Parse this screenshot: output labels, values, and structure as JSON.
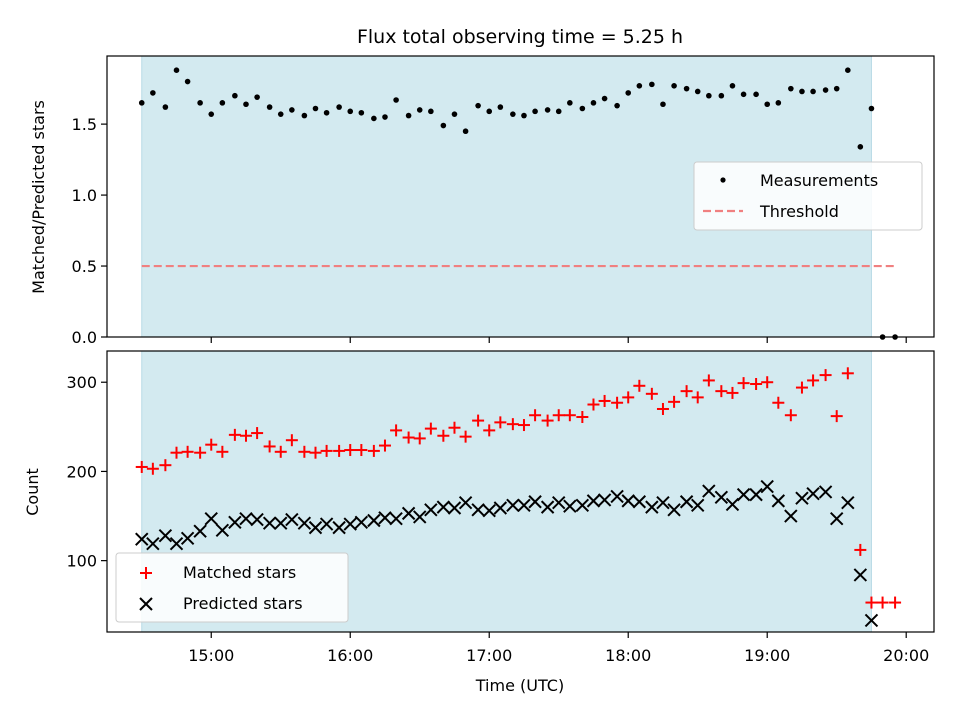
{
  "chart_data": {
    "type": "scatter",
    "title": "Flux total observing time = 5.25 h",
    "xlabel": "Time (UTC)",
    "x_ticks": [
      "15:00",
      "16:00",
      "17:00",
      "18:00",
      "19:00",
      "20:00"
    ],
    "x_unit": "hours UTC",
    "xlim": [
      14.25,
      20.2
    ],
    "shaded_interval": [
      14.5,
      19.75
    ],
    "shade_color": "#d3eaf0",
    "panels": [
      {
        "ylabel": "Matched/Predicted stars",
        "ylim": [
          0,
          1.98
        ],
        "y_ticks": [
          "0.0",
          "0.5",
          "1.0",
          "1.5"
        ],
        "y_tick_values": [
          0,
          0.5,
          1.0,
          1.5
        ],
        "legend": {
          "position": "right",
          "entries": [
            "Measurements",
            "Threshold"
          ]
        },
        "series": [
          {
            "name": "Measurements",
            "marker": "dot",
            "color": "#000000",
            "x": [
              14.5,
              14.58,
              14.67,
              14.75,
              14.83,
              14.92,
              15.0,
              15.08,
              15.17,
              15.25,
              15.33,
              15.42,
              15.5,
              15.58,
              15.67,
              15.75,
              15.83,
              15.92,
              16.0,
              16.08,
              16.17,
              16.25,
              16.33,
              16.42,
              16.5,
              16.58,
              16.67,
              16.75,
              16.83,
              16.92,
              17.0,
              17.08,
              17.17,
              17.25,
              17.33,
              17.42,
              17.5,
              17.58,
              17.67,
              17.75,
              17.83,
              17.92,
              18.0,
              18.08,
              18.17,
              18.25,
              18.33,
              18.42,
              18.5,
              18.58,
              18.67,
              18.75,
              18.83,
              18.92,
              19.0,
              19.08,
              19.17,
              19.25,
              19.33,
              19.42,
              19.5,
              19.58,
              19.67,
              19.75,
              19.83,
              19.92
            ],
            "y": [
              1.65,
              1.72,
              1.62,
              1.88,
              1.8,
              1.65,
              1.57,
              1.65,
              1.7,
              1.64,
              1.69,
              1.62,
              1.57,
              1.6,
              1.56,
              1.61,
              1.58,
              1.62,
              1.59,
              1.58,
              1.54,
              1.55,
              1.67,
              1.56,
              1.6,
              1.59,
              1.49,
              1.57,
              1.45,
              1.63,
              1.59,
              1.62,
              1.57,
              1.56,
              1.59,
              1.6,
              1.59,
              1.65,
              1.61,
              1.65,
              1.68,
              1.63,
              1.72,
              1.77,
              1.78,
              1.64,
              1.77,
              1.75,
              1.73,
              1.7,
              1.7,
              1.77,
              1.71,
              1.71,
              1.64,
              1.65,
              1.75,
              1.73,
              1.73,
              1.74,
              1.75,
              1.88,
              1.34,
              1.61,
              0.0,
              0.0
            ]
          },
          {
            "name": "Threshold",
            "line": "dashed",
            "color": "#f08080",
            "x": [
              14.5,
              19.92
            ],
            "y": [
              0.5,
              0.5
            ]
          }
        ]
      },
      {
        "ylabel": "Count",
        "ylim": [
          20,
          335
        ],
        "y_ticks": [
          "100",
          "200",
          "300"
        ],
        "y_tick_values": [
          100,
          200,
          300
        ],
        "legend": {
          "position": "lower-left",
          "entries": [
            "Matched stars",
            "Predicted stars"
          ]
        },
        "series": [
          {
            "name": "Matched stars",
            "marker": "plus",
            "color": "#ff0000",
            "x": [
              14.5,
              14.58,
              14.67,
              14.75,
              14.83,
              14.92,
              15.0,
              15.08,
              15.17,
              15.25,
              15.33,
              15.42,
              15.5,
              15.58,
              15.67,
              15.75,
              15.83,
              15.92,
              16.0,
              16.08,
              16.17,
              16.25,
              16.33,
              16.42,
              16.5,
              16.58,
              16.67,
              16.75,
              16.83,
              16.92,
              17.0,
              17.08,
              17.17,
              17.25,
              17.33,
              17.42,
              17.5,
              17.58,
              17.67,
              17.75,
              17.83,
              17.92,
              18.0,
              18.08,
              18.17,
              18.25,
              18.33,
              18.42,
              18.5,
              18.58,
              18.67,
              18.75,
              18.83,
              18.92,
              19.0,
              19.08,
              19.17,
              19.25,
              19.33,
              19.42,
              19.5,
              19.58,
              19.67,
              19.75,
              19.83,
              19.92
            ],
            "y": [
              205,
              203,
              207,
              221,
              222,
              221,
              230,
              222,
              241,
              240,
              243,
              228,
              222,
              235,
              222,
              221,
              223,
              223,
              224,
              224,
              223,
              229,
              246,
              238,
              237,
              248,
              240,
              249,
              239,
              257,
              246,
              255,
              253,
              252,
              263,
              257,
              263,
              263,
              261,
              275,
              279,
              277,
              283,
              296,
              287,
              270,
              278,
              290,
              283,
              302,
              290,
              288,
              299,
              298,
              300,
              277,
              263,
              294,
              302,
              308,
              262,
              310,
              112,
              53,
              53,
              53
            ]
          },
          {
            "name": "Predicted stars",
            "marker": "x",
            "color": "#000000",
            "x": [
              14.5,
              14.58,
              14.67,
              14.75,
              14.83,
              14.92,
              15.0,
              15.08,
              15.17,
              15.25,
              15.33,
              15.42,
              15.5,
              15.58,
              15.67,
              15.75,
              15.83,
              15.92,
              16.0,
              16.08,
              16.17,
              16.25,
              16.33,
              16.42,
              16.5,
              16.58,
              16.67,
              16.75,
              16.83,
              16.92,
              17.0,
              17.08,
              17.17,
              17.25,
              17.33,
              17.42,
              17.5,
              17.58,
              17.67,
              17.75,
              17.83,
              17.92,
              18.0,
              18.08,
              18.17,
              18.25,
              18.33,
              18.42,
              18.5,
              18.58,
              18.67,
              18.75,
              18.83,
              18.92,
              19.0,
              19.08,
              19.17,
              19.25,
              19.33,
              19.42,
              19.5,
              19.58,
              19.67,
              19.75
            ],
            "y": [
              124,
              119,
              128,
              119,
              125,
              133,
              147,
              134,
              143,
              147,
              146,
              142,
              142,
              146,
              142,
              137,
              141,
              137,
              141,
              143,
              145,
              148,
              147,
              153,
              149,
              157,
              160,
              159,
              165,
              157,
              156,
              159,
              162,
              162,
              166,
              160,
              165,
              161,
              162,
              167,
              168,
              172,
              167,
              166,
              160,
              165,
              157,
              166,
              162,
              178,
              171,
              163,
              174,
              174,
              183,
              167,
              150,
              170,
              175,
              177,
              147,
              165,
              84,
              33
            ]
          }
        ]
      }
    ]
  }
}
